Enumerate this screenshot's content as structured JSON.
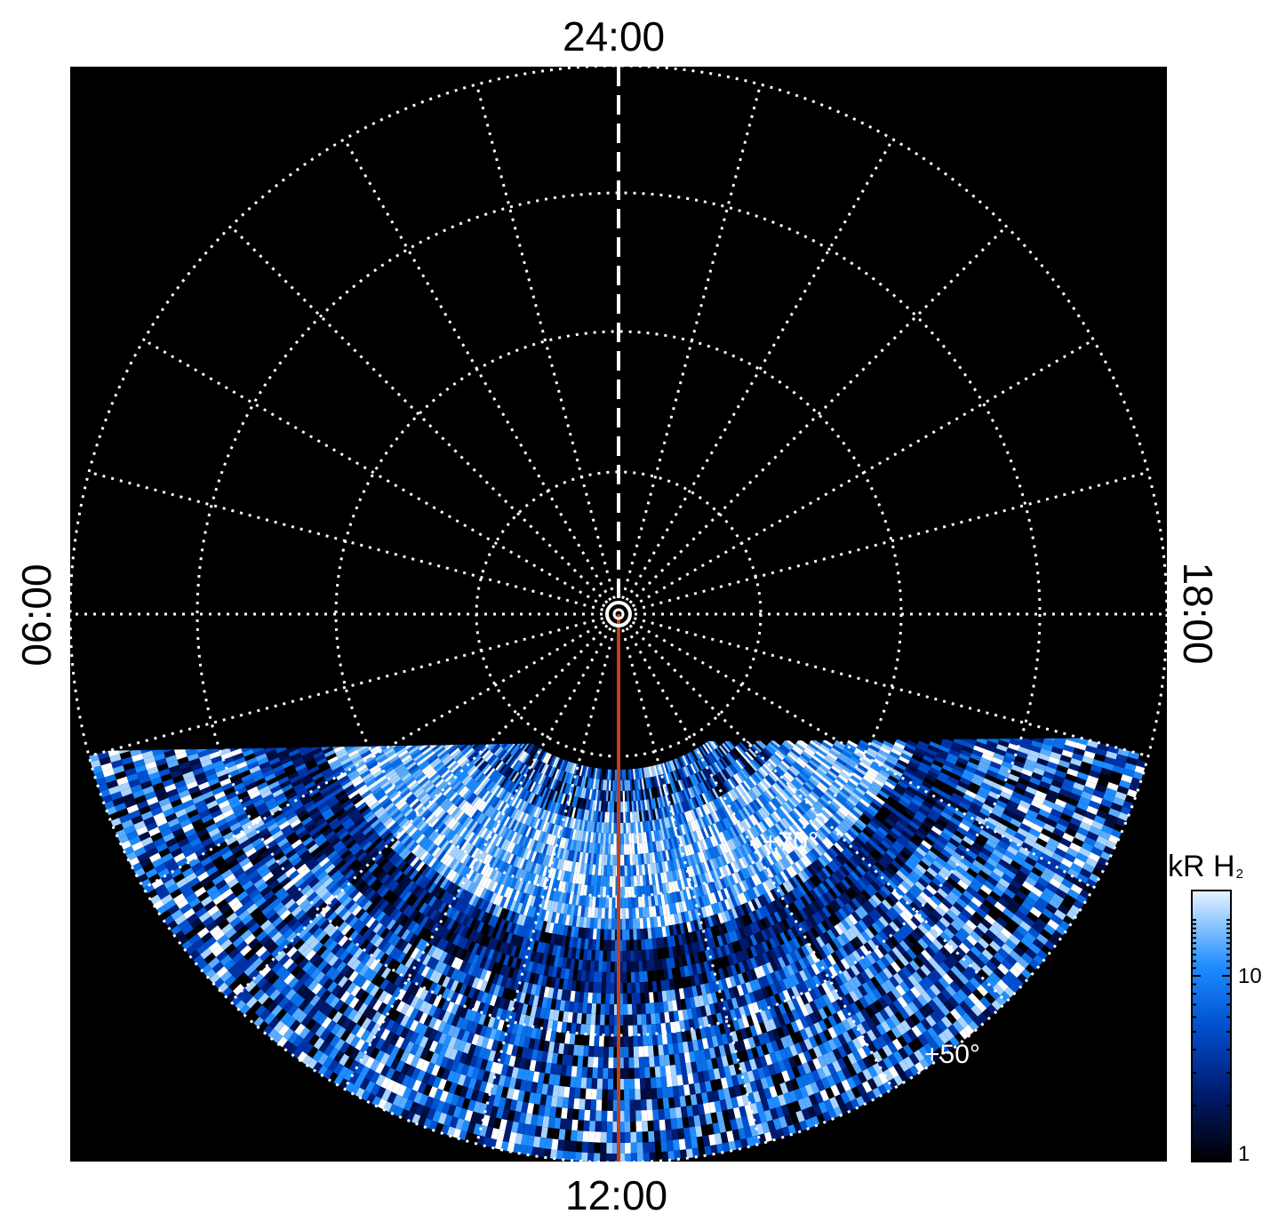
{
  "local_time_labels": {
    "top": "24:00",
    "bottom": "12:00",
    "left": "06:00",
    "right": "18:00"
  },
  "latitude_labels": {
    "seventy": "+70°",
    "fifty": "+50°"
  },
  "colorbar": {
    "title_main": "kR H",
    "title_sub": "2",
    "scale": "log",
    "tick_labels": [
      "1",
      "10"
    ],
    "colors": [
      "#000000",
      "#001a6e",
      "#0050d0",
      "#1e8cff",
      "#e8f4ff"
    ]
  },
  "colors": {
    "background": "#000000",
    "grid": "#ffffff",
    "meridian_line": "#c0401a",
    "emission_dark": "#001a6e",
    "emission_mid": "#1e8cff",
    "emission_bright": "#ffffff"
  }
}
